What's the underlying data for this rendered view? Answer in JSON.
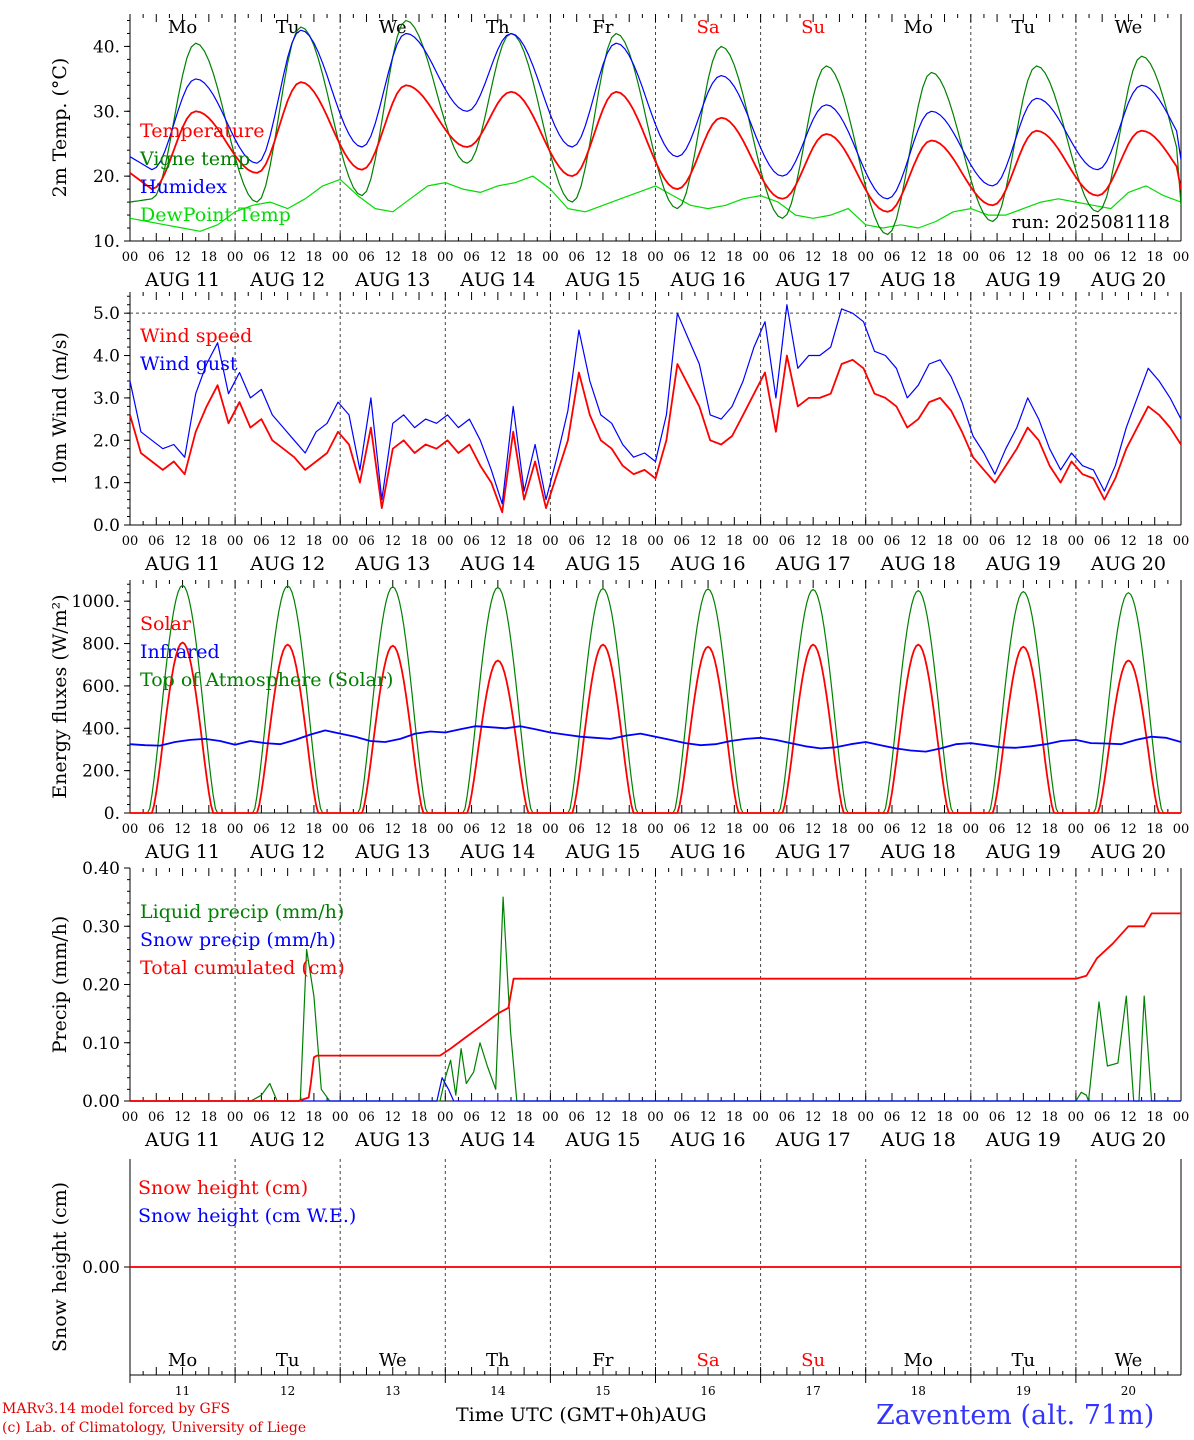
{
  "run_label": "run: 2025081118",
  "days": [
    {
      "abbr": "Mo",
      "date": "AUG 11",
      "num": "11",
      "weekend": false
    },
    {
      "abbr": "Tu",
      "date": "AUG 12",
      "num": "12",
      "weekend": false
    },
    {
      "abbr": "We",
      "date": "AUG 13",
      "num": "13",
      "weekend": false
    },
    {
      "abbr": "Th",
      "date": "AUG 14",
      "num": "14",
      "weekend": false
    },
    {
      "abbr": "Fr",
      "date": "AUG 15",
      "num": "15",
      "weekend": false
    },
    {
      "abbr": "Sa",
      "date": "AUG 16",
      "num": "16",
      "weekend": true
    },
    {
      "abbr": "Su",
      "date": "AUG 17",
      "num": "17",
      "weekend": true
    },
    {
      "abbr": "Mo",
      "date": "AUG 18",
      "num": "18",
      "weekend": false
    },
    {
      "abbr": "Tu",
      "date": "AUG 19",
      "num": "19",
      "weekend": false
    },
    {
      "abbr": "We",
      "date": "AUG 20",
      "num": "20",
      "weekend": false
    }
  ],
  "hour_ticks": [
    "00",
    "06",
    "12",
    "18"
  ],
  "x_axis": {
    "label": "Time UTC (GMT+0h)",
    "month": "AUG"
  },
  "footer": {
    "model_line": "MARv3.14 model forced by GFS",
    "credit_line": "(c) Lab. of Climatology, University of Liege",
    "station": "Zaventem (alt. 71m)"
  },
  "colors": {
    "red": "#ff0000",
    "green": "#008000",
    "blue": "#0000ff",
    "light_green": "#00dd00",
    "axis": "#000000"
  },
  "chart_data": [
    {
      "id": "temp",
      "type": "line",
      "ylabel": "2m Temp. (°C)",
      "ylim": [
        10,
        45
      ],
      "yticks": [
        10,
        20,
        30,
        40
      ],
      "ytick_labels": [
        "10.",
        "20.",
        "30.",
        "40."
      ],
      "dashed_ref": null,
      "series": [
        {
          "name": "Temperature",
          "color": "#ff0000",
          "mins": [
            18.0,
            20.5,
            21.0,
            24.5,
            20.0,
            18.0,
            16.5,
            14.5,
            15.5,
            17.0
          ],
          "maxs": [
            30.0,
            34.5,
            34.0,
            33.0,
            33.0,
            29.0,
            26.5,
            25.5,
            27.0,
            27.0
          ],
          "start": 20.5,
          "end": 18.0
        },
        {
          "name": "Vigne temp",
          "color": "#008000",
          "mins": [
            16.5,
            16.0,
            17.0,
            22.0,
            16.0,
            15.0,
            13.5,
            11.0,
            13.0,
            14.5
          ],
          "maxs": [
            40.5,
            43.0,
            44.0,
            42.0,
            42.0,
            40.0,
            37.0,
            36.0,
            37.0,
            38.5
          ],
          "start": 16.0,
          "end": 15.5
        },
        {
          "name": "Humidex",
          "color": "#0000ff",
          "mins": [
            21.0,
            22.0,
            24.5,
            30.0,
            24.5,
            23.0,
            20.0,
            16.5,
            18.5,
            21.0
          ],
          "maxs": [
            35.0,
            42.5,
            42.0,
            42.0,
            40.5,
            35.5,
            31.0,
            30.0,
            32.0,
            34.0
          ],
          "start": 23.0,
          "end": 22.5
        },
        {
          "name": "DewPoint Temp",
          "color": "#00dd00",
          "values": [
            13.5,
            13.0,
            12.5,
            12.0,
            11.5,
            12.5,
            14.5,
            15.5,
            16.0,
            15.0,
            16.5,
            18.5,
            19.5,
            17.0,
            15.0,
            14.5,
            16.5,
            18.5,
            19.0,
            18.0,
            17.5,
            18.5,
            19.0,
            20.0,
            18.0,
            15.0,
            14.5,
            15.5,
            16.5,
            17.5,
            18.5,
            17.0,
            15.5,
            15.0,
            15.5,
            16.5,
            17.0,
            16.0,
            14.0,
            13.5,
            14.0,
            15.0,
            12.5,
            12.0,
            12.5,
            12.0,
            13.0,
            14.5,
            15.0,
            14.0,
            14.0,
            15.0,
            16.0,
            16.5,
            16.0,
            15.5,
            15.0,
            17.5,
            18.5,
            17.0,
            16.0
          ]
        }
      ]
    },
    {
      "id": "wind",
      "type": "line",
      "ylabel": "10m Wind (m/s)",
      "ylim": [
        0,
        5.5
      ],
      "yticks": [
        0,
        1,
        2,
        3,
        4,
        5
      ],
      "ytick_labels": [
        "0.0",
        "1.0",
        "2.0",
        "3.0",
        "4.0",
        "5.0"
      ],
      "dashed_ref": 5,
      "series": [
        {
          "name": "Wind speed",
          "color": "#ff0000",
          "values": [
            2.6,
            1.7,
            1.5,
            1.3,
            1.5,
            1.2,
            2.2,
            2.8,
            3.3,
            2.4,
            2.9,
            2.3,
            2.5,
            2.0,
            1.8,
            1.6,
            1.3,
            1.5,
            1.7,
            2.2,
            1.9,
            1.0,
            2.3,
            0.4,
            1.8,
            2.0,
            1.7,
            1.9,
            1.8,
            2.0,
            1.7,
            1.9,
            1.4,
            1.0,
            0.3,
            2.2,
            0.6,
            1.5,
            0.4,
            1.2,
            2.0,
            3.6,
            2.6,
            2.0,
            1.8,
            1.4,
            1.2,
            1.3,
            1.1,
            2.0,
            3.8,
            3.3,
            2.8,
            2.0,
            1.9,
            2.1,
            2.6,
            3.1,
            3.6,
            2.2,
            4.0,
            2.8,
            3.0,
            3.0,
            3.1,
            3.8,
            3.9,
            3.7,
            3.1,
            3.0,
            2.8,
            2.3,
            2.5,
            2.9,
            3.0,
            2.7,
            2.2,
            1.6,
            1.3,
            1.0,
            1.4,
            1.8,
            2.3,
            2.0,
            1.4,
            1.0,
            1.5,
            1.2,
            1.1,
            0.6,
            1.1,
            1.8,
            2.3,
            2.8,
            2.6,
            2.3,
            1.9
          ]
        },
        {
          "name": "Wind gust",
          "color": "#0000ff",
          "values": [
            3.4,
            2.2,
            2.0,
            1.8,
            1.9,
            1.6,
            3.1,
            3.8,
            4.3,
            3.1,
            3.6,
            3.0,
            3.2,
            2.6,
            2.3,
            2.0,
            1.7,
            2.2,
            2.4,
            2.9,
            2.6,
            1.3,
            3.0,
            0.6,
            2.4,
            2.6,
            2.3,
            2.5,
            2.4,
            2.6,
            2.3,
            2.5,
            2.0,
            1.3,
            0.5,
            2.8,
            0.8,
            1.9,
            0.6,
            1.6,
            2.7,
            4.6,
            3.4,
            2.6,
            2.4,
            1.9,
            1.6,
            1.7,
            1.5,
            2.6,
            5.0,
            4.4,
            3.8,
            2.6,
            2.5,
            2.8,
            3.4,
            4.2,
            4.8,
            3.0,
            5.2,
            3.7,
            4.0,
            4.0,
            4.2,
            5.1,
            5.0,
            4.8,
            4.1,
            4.0,
            3.7,
            3.0,
            3.3,
            3.8,
            3.9,
            3.5,
            2.9,
            2.1,
            1.7,
            1.2,
            1.8,
            2.3,
            3.0,
            2.5,
            1.8,
            1.3,
            1.7,
            1.4,
            1.3,
            0.8,
            1.4,
            2.3,
            3.0,
            3.7,
            3.4,
            3.0,
            2.5
          ]
        }
      ]
    },
    {
      "id": "energy",
      "type": "line",
      "ylabel": "Energy fluxes (W/m²)",
      "ylim": [
        0,
        1100
      ],
      "yticks": [
        0,
        200,
        400,
        600,
        800,
        1000
      ],
      "ytick_labels": [
        "0.",
        "200.",
        "400.",
        "600.",
        "800.",
        "1000."
      ],
      "dashed_ref": null,
      "series": [
        {
          "name": "Solar",
          "color": "#ff0000",
          "peaks": [
            805,
            795,
            790,
            720,
            795,
            785,
            795,
            795,
            785,
            720
          ]
        },
        {
          "name": "Infrared",
          "color": "#0000ff",
          "values": [
            325,
            320,
            318,
            335,
            345,
            350,
            340,
            322,
            340,
            330,
            325,
            345,
            370,
            390,
            375,
            360,
            340,
            335,
            350,
            375,
            385,
            380,
            395,
            410,
            405,
            400,
            410,
            395,
            380,
            370,
            360,
            355,
            350,
            365,
            375,
            360,
            345,
            330,
            320,
            325,
            340,
            350,
            355,
            345,
            330,
            315,
            305,
            310,
            325,
            335,
            320,
            305,
            295,
            290,
            305,
            325,
            330,
            320,
            310,
            308,
            315,
            325,
            340,
            345,
            330,
            328,
            325,
            345,
            360,
            355,
            335
          ]
        },
        {
          "name": "Top of Atmosphere (Solar)",
          "color": "#008000",
          "peaks": [
            1075,
            1072,
            1068,
            1065,
            1060,
            1058,
            1055,
            1050,
            1045,
            1040
          ]
        }
      ]
    },
    {
      "id": "precip",
      "type": "line",
      "ylabel": "Precip (mm/h)",
      "ylim": [
        0,
        0.4
      ],
      "yticks": [
        0,
        0.1,
        0.2,
        0.3,
        0.4
      ],
      "ytick_labels": [
        "0.00",
        "0.10",
        "0.20",
        "0.30",
        "0.40"
      ],
      "dashed_ref": null,
      "series": [
        {
          "name": "Liquid precip (mm/h)",
          "color": "#008000",
          "points": [
            [
              0,
              0
            ],
            [
              1.15,
              0
            ],
            [
              1.25,
              0.01
            ],
            [
              1.33,
              0.03
            ],
            [
              1.4,
              0
            ],
            [
              1.62,
              0
            ],
            [
              1.68,
              0.26
            ],
            [
              1.75,
              0.18
            ],
            [
              1.82,
              0.02
            ],
            [
              1.9,
              0
            ],
            [
              2.95,
              0
            ],
            [
              3.0,
              0.04
            ],
            [
              3.05,
              0.07
            ],
            [
              3.1,
              0.01
            ],
            [
              3.15,
              0.09
            ],
            [
              3.2,
              0.03
            ],
            [
              3.27,
              0.05
            ],
            [
              3.33,
              0.1
            ],
            [
              3.4,
              0.06
            ],
            [
              3.48,
              0.02
            ],
            [
              3.55,
              0.35
            ],
            [
              3.62,
              0.12
            ],
            [
              3.68,
              0
            ],
            [
              9.0,
              0
            ],
            [
              9.05,
              0.015
            ],
            [
              9.1,
              0.01
            ],
            [
              9.12,
              0
            ],
            [
              9.22,
              0.17
            ],
            [
              9.3,
              0.06
            ],
            [
              9.4,
              0.065
            ],
            [
              9.48,
              0.18
            ],
            [
              9.55,
              0
            ],
            [
              9.6,
              0
            ],
            [
              9.65,
              0.18
            ],
            [
              9.72,
              0
            ],
            [
              10.0,
              0
            ]
          ]
        },
        {
          "name": "Snow precip (mm/h)",
          "color": "#0000ff",
          "points": [
            [
              0,
              0
            ],
            [
              2.92,
              0
            ],
            [
              2.97,
              0.04
            ],
            [
              3.03,
              0.02
            ],
            [
              3.08,
              0
            ],
            [
              10.0,
              0
            ]
          ]
        },
        {
          "name": "Total cumulated (cm)",
          "color": "#ff0000",
          "points": [
            [
              0,
              0
            ],
            [
              1.6,
              0
            ],
            [
              1.7,
              0.006
            ],
            [
              1.72,
              0.03
            ],
            [
              1.75,
              0.075
            ],
            [
              1.78,
              0.078
            ],
            [
              2.95,
              0.078
            ],
            [
              3.05,
              0.09
            ],
            [
              3.2,
              0.11
            ],
            [
              3.35,
              0.13
            ],
            [
              3.5,
              0.15
            ],
            [
              3.6,
              0.16
            ],
            [
              3.65,
              0.21
            ],
            [
              9.0,
              0.21
            ],
            [
              9.1,
              0.215
            ],
            [
              9.2,
              0.245
            ],
            [
              9.35,
              0.27
            ],
            [
              9.5,
              0.3
            ],
            [
              9.65,
              0.3
            ],
            [
              9.72,
              0.322
            ],
            [
              10.0,
              0.322
            ]
          ]
        }
      ]
    },
    {
      "id": "snow",
      "type": "line",
      "ylabel": "Snow height (cm)",
      "ylim": [
        -1,
        1
      ],
      "yticks": [
        0
      ],
      "ytick_labels": [
        "0.00"
      ],
      "dashed_ref": null,
      "series": [
        {
          "name": "Snow height (cm)",
          "color": "#ff0000",
          "points": [
            [
              0,
              0
            ],
            [
              10,
              0
            ]
          ]
        },
        {
          "name": "Snow height (cm W.E.)",
          "color": "#0000ff",
          "points": [
            [
              0,
              0
            ],
            [
              10,
              0
            ]
          ]
        }
      ]
    }
  ]
}
